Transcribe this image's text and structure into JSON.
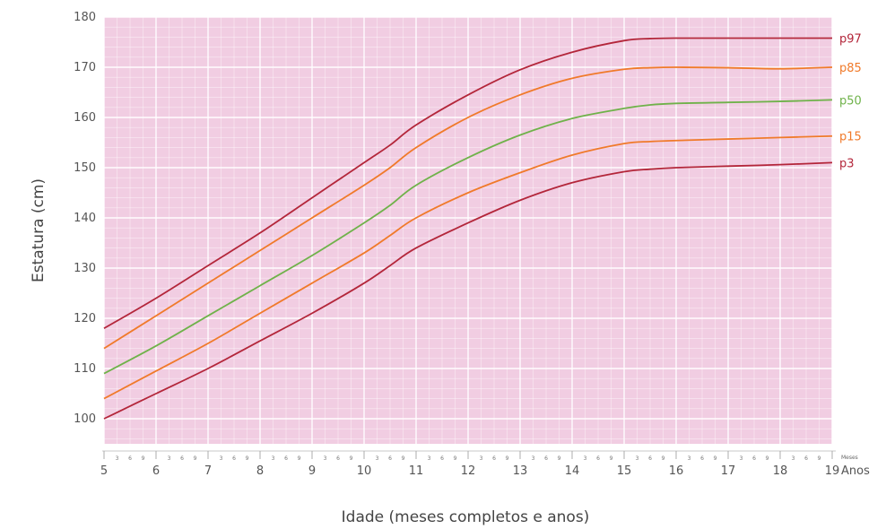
{
  "chart_data": {
    "type": "line",
    "title": "",
    "xlabel": "Idade (meses completos e anos)",
    "ylabel": "Estatura (cm)",
    "xlim": [
      5,
      19
    ],
    "ylim": [
      95,
      180
    ],
    "x_ticks": [
      "5",
      "6",
      "7",
      "8",
      "9",
      "10",
      "11",
      "12",
      "13",
      "14",
      "15",
      "16",
      "17",
      "18",
      "19"
    ],
    "y_ticks": [
      "100",
      "110",
      "120",
      "130",
      "140",
      "150",
      "160",
      "170",
      "180"
    ],
    "month_ticks": [
      "3",
      "6",
      "9"
    ],
    "x_unit_minor": "Meses",
    "x_unit_major": "Anos",
    "grid": true,
    "background": "#f1cde2",
    "series": [
      {
        "name": "p97",
        "color": "#b3263a",
        "x": [
          5,
          6,
          7,
          8,
          9,
          10,
          10.5,
          11,
          12,
          13,
          14,
          15,
          15.5,
          16,
          17,
          18,
          19
        ],
        "y": [
          118,
          124,
          130.5,
          137,
          144,
          151,
          154.5,
          158.5,
          164.5,
          169.5,
          173,
          175.3,
          175.7,
          175.8,
          175.8,
          175.8,
          175.8
        ]
      },
      {
        "name": "p85",
        "color": "#f07a2a",
        "x": [
          5,
          6,
          7,
          8,
          9,
          10,
          10.5,
          11,
          12,
          13,
          14,
          15,
          15.5,
          16,
          17,
          18,
          19
        ],
        "y": [
          114,
          120.5,
          127,
          133.5,
          140,
          146.5,
          150,
          154,
          160,
          164.5,
          167.8,
          169.6,
          169.9,
          170,
          169.9,
          169.7,
          170
        ]
      },
      {
        "name": "p50",
        "color": "#6fb24a",
        "x": [
          5,
          6,
          7,
          8,
          9,
          10,
          10.5,
          11,
          12,
          13,
          14,
          15,
          15.5,
          16,
          17,
          18,
          19
        ],
        "y": [
          109,
          114.5,
          120.5,
          126.5,
          132.5,
          139,
          142.5,
          146.5,
          152,
          156.5,
          159.8,
          161.8,
          162.5,
          162.8,
          163,
          163.2,
          163.5
        ]
      },
      {
        "name": "p15",
        "color": "#f07a2a",
        "x": [
          5,
          6,
          7,
          8,
          9,
          10,
          10.5,
          11,
          12,
          13,
          14,
          15,
          15.5,
          16,
          17,
          18,
          19
        ],
        "y": [
          104,
          109.5,
          115,
          121,
          127,
          133,
          136.5,
          140,
          145,
          149,
          152.5,
          154.8,
          155.2,
          155.4,
          155.7,
          156,
          156.3
        ]
      },
      {
        "name": "p3",
        "color": "#b3263a",
        "x": [
          5,
          6,
          7,
          8,
          9,
          10,
          10.5,
          11,
          12,
          13,
          14,
          15,
          15.5,
          16,
          17,
          18,
          19
        ],
        "y": [
          100,
          105,
          110,
          115.5,
          121,
          127,
          130.5,
          134,
          139,
          143.5,
          147,
          149.2,
          149.7,
          150,
          150.3,
          150.6,
          151
        ]
      }
    ]
  }
}
